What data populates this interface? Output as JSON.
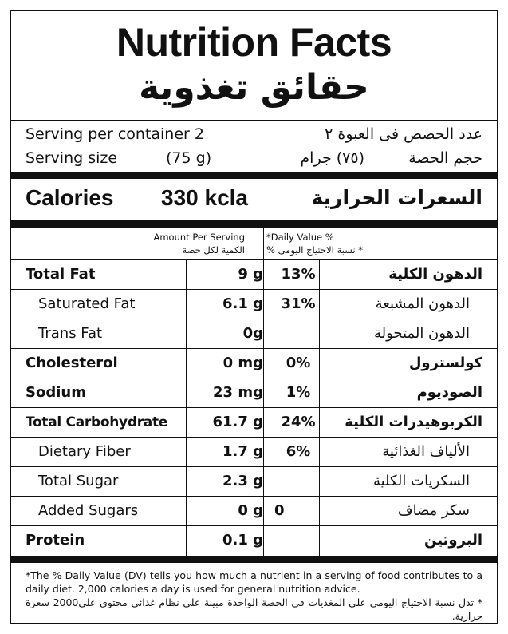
{
  "header": {
    "title_en": "Nutrition Facts",
    "title_ar": "حقائق تغذوية"
  },
  "serving": {
    "per_container_en": "Serving per container 2",
    "per_container_ar": "عدد الحصص فى العبوة ٢",
    "size_label_en": "Serving size",
    "size_value_en": "(75 g)",
    "size_value_ar": "(٧٥) جرام",
    "size_label_ar": "حجم الحصة"
  },
  "calories": {
    "label_en": "Calories",
    "value": "330 kcla",
    "label_ar": "السعرات الحرارية"
  },
  "column_headers": {
    "amount_en": "Amount Per Serving",
    "amount_ar": "الكمية لكل حصة",
    "dv_en": "*Daily Value %",
    "dv_ar": "* نسبة الاحتياج اليومى %"
  },
  "nutrients": [
    {
      "name_en": "Total Fat",
      "amount": "9 g",
      "dv": "13%",
      "name_ar": "الدهون الكلية",
      "bold": true,
      "indent": false
    },
    {
      "name_en": "Saturated Fat",
      "amount": "6.1 g",
      "dv": "31%",
      "name_ar": "الدهون المشبعة",
      "bold": false,
      "indent": true
    },
    {
      "name_en": "Trans Fat",
      "amount": "0g",
      "dv": "",
      "name_ar": "الدهون المتحولة",
      "bold": false,
      "indent": true
    },
    {
      "name_en": "Cholesterol",
      "amount": "0 mg",
      "dv": "0%",
      "name_ar": "كولسترول",
      "bold": true,
      "indent": false
    },
    {
      "name_en": "Sodium",
      "amount": "23 mg",
      "dv": "1%",
      "name_ar": "الصوديوم",
      "bold": true,
      "indent": false
    },
    {
      "name_en": "Total Carbohydrate",
      "amount": "61.7 g",
      "dv": "24%",
      "name_ar": "الكربوهيدرات الكلية",
      "bold": true,
      "indent": false
    },
    {
      "name_en": "Dietary Fiber",
      "amount": "1.7 g",
      "dv": "6%",
      "name_ar": "الألياف الغذائية",
      "bold": false,
      "indent": true
    },
    {
      "name_en": "Total Sugar",
      "amount": "2.3 g",
      "dv": "",
      "name_ar": "السكريات الكلية",
      "bold": false,
      "indent": true
    },
    {
      "name_en": "Added Sugars",
      "amount": "0 g",
      "dv": "0",
      "name_ar": "سكر مضاف",
      "bold": false,
      "indent": true
    },
    {
      "name_en": "Protein",
      "amount": "0.1 g",
      "dv": "",
      "name_ar": "البروتين",
      "bold": true,
      "indent": false
    }
  ],
  "footnote": {
    "en": "*The % Daily Value (DV) tells you how much a nutrient in a serving of food contributes to a daily diet. 2,000 calories a day is used for general nutrition advice.",
    "ar": "* تدل نسبة الاحتياج اليومي على المغذيات فى الحصة الواحدة مبينة على نظام غذائى محتوى على2000 سعرة حرارية."
  }
}
